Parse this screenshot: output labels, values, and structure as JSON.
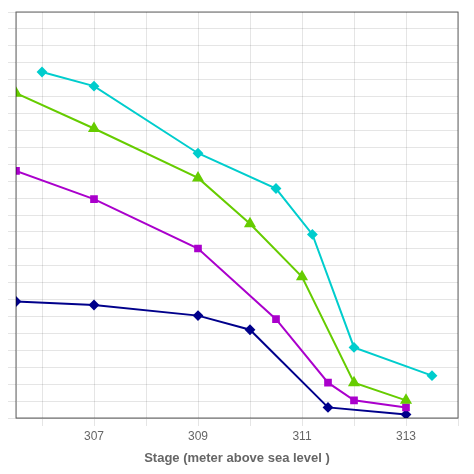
{
  "chart_data": {
    "type": "line",
    "xlabel": "Stage (meter above sea level )",
    "series": [
      {
        "color": "#00CDCD",
        "marker": "diamond",
        "x": [
          306.0,
          307.0,
          309.0,
          310.5,
          311.2,
          312.0,
          313.5
        ],
        "values": [
          9.8,
          9.4,
          7.5,
          6.5,
          5.2,
          2.0,
          1.2
        ]
      },
      {
        "color": "#66CC00",
        "marker": "triangle",
        "x": [
          305.5,
          307.0,
          309.0,
          310.0,
          311.0,
          312.0,
          313.0
        ],
        "values": [
          9.2,
          8.2,
          6.8,
          5.5,
          4.0,
          1.0,
          0.5
        ]
      },
      {
        "color": "#AA00CC",
        "marker": "square",
        "x": [
          305.5,
          307.0,
          309.0,
          310.5,
          311.5,
          312.0,
          313.0
        ],
        "values": [
          7.0,
          6.2,
          4.8,
          2.8,
          1.0,
          0.5,
          0.3
        ]
      },
      {
        "color": "#00008B",
        "marker": "diamond",
        "x": [
          305.5,
          307.0,
          309.0,
          310.0,
          311.5,
          313.0
        ],
        "values": [
          3.3,
          3.2,
          2.9,
          2.5,
          0.3,
          0.1
        ]
      }
    ],
    "xlim": [
      305.5,
      314.0
    ],
    "ylim": [
      0,
      11.5
    ],
    "xticks": [
      {
        "value": 306,
        "label": null
      },
      307,
      {
        "value": 308,
        "label": null
      },
      309,
      {
        "value": 310,
        "label": null
      },
      311,
      {
        "value": 312,
        "label": null
      },
      313,
      {
        "value": 314,
        "label": null
      }
    ],
    "yticks": [
      0,
      0.4791666666666667,
      0.9583333333333334,
      1.4375,
      1.9166666666666667,
      2.3958333333333335,
      2.875,
      3.3541666666666665,
      3.8333333333333335,
      4.3125,
      4.791666666666667,
      5.270833333333333,
      5.75,
      6.229166666666667,
      6.708333333333333,
      7.1875,
      7.666666666666667,
      8.145833333333334,
      8.625,
      9.104166666666666,
      9.583333333333334,
      10.0625,
      10.541666666666666,
      11.020833333333334,
      11.5
    ],
    "grid": true,
    "tick_labels": "x"
  }
}
